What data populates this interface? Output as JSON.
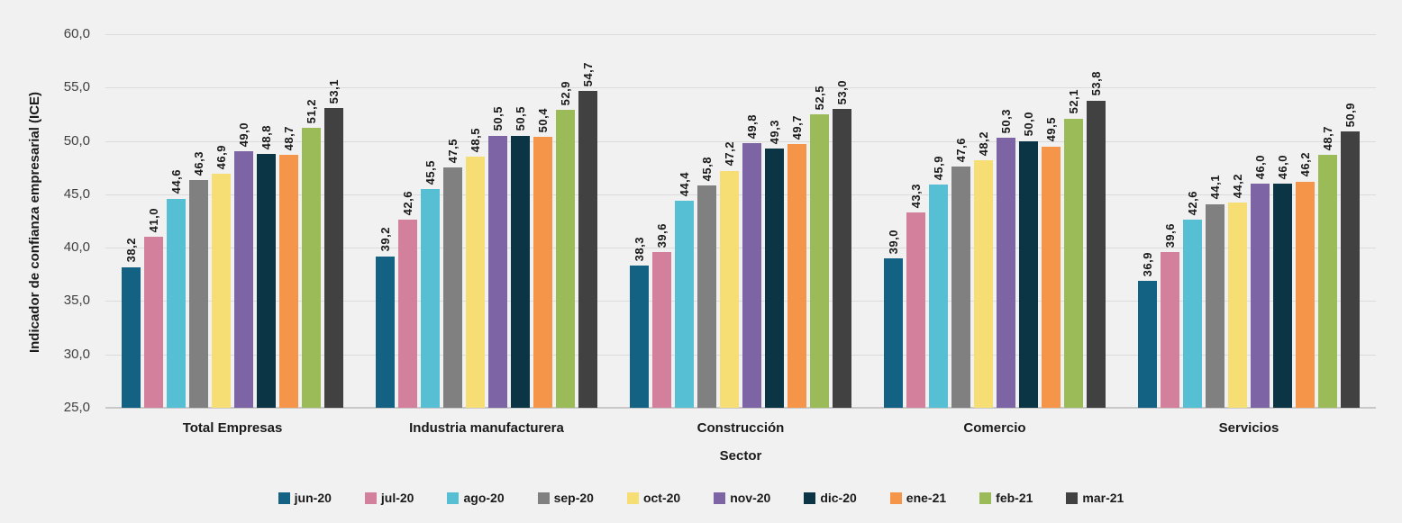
{
  "chart_data": {
    "type": "bar",
    "title": "",
    "xlabel": "Sector",
    "ylabel": "Indicador de confianza empresarial (ICE)",
    "ylim": [
      25.0,
      60.0
    ],
    "ytick_step": 5.0,
    "ytick_labels": [
      "25,0",
      "30,0",
      "35,0",
      "40,0",
      "45,0",
      "50,0",
      "55,0",
      "60,0"
    ],
    "grid": true,
    "legend_position": "bottom",
    "value_labels": "rotated-vertical, comma decimal",
    "categories": [
      "Total Empresas",
      "Industria manufacturera",
      "Construcción",
      "Comercio",
      "Servicios"
    ],
    "series": [
      {
        "name": "jun-20",
        "color": "#136183",
        "values": [
          38.2,
          39.2,
          38.3,
          39.0,
          36.9
        ]
      },
      {
        "name": "jul-20",
        "color": "#D2809B",
        "values": [
          41.0,
          42.6,
          39.6,
          43.3,
          39.6
        ]
      },
      {
        "name": "ago-20",
        "color": "#57BFD3",
        "values": [
          44.6,
          45.5,
          44.4,
          45.9,
          42.6
        ]
      },
      {
        "name": "sep-20",
        "color": "#808080",
        "values": [
          46.3,
          47.5,
          45.8,
          47.6,
          44.1
        ]
      },
      {
        "name": "oct-20",
        "color": "#F6DE74",
        "values": [
          46.9,
          48.5,
          47.2,
          48.2,
          44.2
        ]
      },
      {
        "name": "nov-20",
        "color": "#7D64A5",
        "values": [
          49.0,
          50.5,
          49.8,
          50.3,
          46.0
        ]
      },
      {
        "name": "dic-20",
        "color": "#0B3444",
        "values": [
          48.8,
          50.5,
          49.3,
          50.0,
          46.0
        ]
      },
      {
        "name": "ene-21",
        "color": "#F5954A",
        "values": [
          48.7,
          50.4,
          49.7,
          49.5,
          46.2
        ]
      },
      {
        "name": "feb-21",
        "color": "#9BBB59",
        "values": [
          51.2,
          52.9,
          52.5,
          52.1,
          48.7
        ]
      },
      {
        "name": "mar-21",
        "color": "#414141",
        "values": [
          53.1,
          54.7,
          53.0,
          53.8,
          50.9
        ]
      }
    ],
    "colors": {
      "background": "#F1F1F1",
      "gridline": "#DBDBDB",
      "axis_line": "#C8C8C8",
      "tick_text": "#404040",
      "label_text": "#1A1A1A"
    }
  }
}
